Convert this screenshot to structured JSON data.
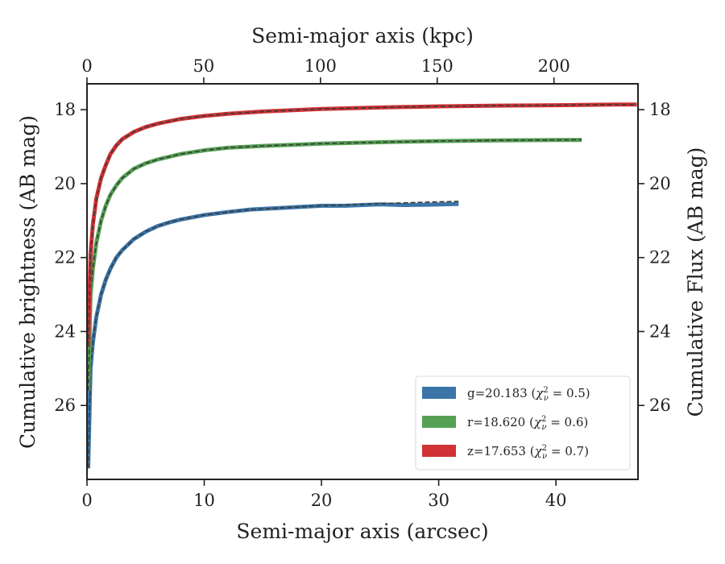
{
  "chart_data": {
    "type": "line",
    "xlabel": "Semi-major axis (arcsec)",
    "ylabel": "Cumulative brightness (AB mag)",
    "x2label": "Semi-major axis (kpc)",
    "y2label": "Cumulative Flux (AB mag)",
    "xlim": [
      0,
      47
    ],
    "ylim": [
      28,
      17.3
    ],
    "x2lim": [
      0,
      236
    ],
    "y_inverted": true,
    "xticks": [
      0,
      10,
      20,
      30,
      40
    ],
    "yticks": [
      18,
      20,
      22,
      24,
      26
    ],
    "x2ticks": [
      0,
      50,
      100,
      150,
      200
    ],
    "legend_position": "lower right",
    "grid": false,
    "series": [
      {
        "name": "g=20.183 (χ²ν = 0.5)",
        "legend_main": "g=20.183 (",
        "legend_sym": "χ",
        "legend_sup": "2",
        "legend_sub": "ν",
        "legend_tail": " = 0.5)",
        "color": "#3b75a8",
        "x": [
          0.1,
          0.3,
          0.5,
          0.8,
          1.2,
          1.6,
          2.0,
          2.5,
          3.0,
          4.0,
          5.0,
          6.0,
          7.0,
          8.0,
          10.0,
          12.0,
          14.0,
          17.0,
          20.0,
          22.0,
          25.0,
          27.0,
          29.0,
          31.7
        ],
        "y": [
          27.7,
          25.0,
          24.3,
          23.6,
          23.0,
          22.6,
          22.3,
          22.0,
          21.8,
          21.5,
          21.3,
          21.15,
          21.05,
          20.97,
          20.85,
          20.77,
          20.7,
          20.65,
          20.6,
          20.6,
          20.56,
          20.58,
          20.57,
          20.55
        ],
        "model_y": [
          27.7,
          25.0,
          24.3,
          23.6,
          23.0,
          22.6,
          22.3,
          22.0,
          21.8,
          21.5,
          21.3,
          21.15,
          21.05,
          20.97,
          20.85,
          20.77,
          20.7,
          20.65,
          20.6,
          20.58,
          20.54,
          20.52,
          20.5,
          20.48
        ]
      },
      {
        "name": "r=18.620 (χ²ν = 0.6)",
        "legend_main": "r=18.620 (",
        "legend_sym": "χ",
        "legend_sup": "2",
        "legend_sub": "ν",
        "legend_tail": " = 0.6)",
        "color": "#55a153",
        "x": [
          0.1,
          0.3,
          0.5,
          0.8,
          1.2,
          1.6,
          2.0,
          2.5,
          3.0,
          4.0,
          5.0,
          6.0,
          8.0,
          10.0,
          12.0,
          15.0,
          20.0,
          25.0,
          30.0,
          35.0,
          40.0,
          42.2
        ],
        "y": [
          25.6,
          23.0,
          22.3,
          21.6,
          21.0,
          20.6,
          20.3,
          20.05,
          19.85,
          19.6,
          19.45,
          19.35,
          19.2,
          19.1,
          19.03,
          18.98,
          18.92,
          18.88,
          18.85,
          18.83,
          18.82,
          18.82
        ],
        "model_y": [
          25.6,
          23.0,
          22.3,
          21.6,
          21.0,
          20.6,
          20.3,
          20.05,
          19.85,
          19.6,
          19.45,
          19.35,
          19.2,
          19.1,
          19.03,
          18.98,
          18.92,
          18.88,
          18.85,
          18.83,
          18.82,
          18.81
        ]
      },
      {
        "name": "z=17.653 (χ²ν = 0.7)",
        "legend_main": "z=17.653 (",
        "legend_sym": "χ",
        "legend_sup": "2",
        "legend_sub": "ν",
        "legend_tail": " = 0.7)",
        "color": "#d03235",
        "x": [
          0.1,
          0.3,
          0.5,
          0.8,
          1.2,
          1.6,
          2.0,
          2.5,
          3.0,
          4.0,
          5.0,
          6.0,
          8.0,
          10.0,
          12.0,
          15.0,
          20.0,
          25.0,
          30.0,
          35.0,
          40.0,
          45.0,
          46.9
        ],
        "y": [
          24.4,
          21.9,
          21.1,
          20.4,
          19.85,
          19.5,
          19.2,
          18.97,
          18.8,
          18.6,
          18.47,
          18.38,
          18.25,
          18.17,
          18.11,
          18.05,
          17.98,
          17.94,
          17.91,
          17.89,
          17.88,
          17.86,
          17.86
        ],
        "model_y": [
          24.4,
          21.9,
          21.1,
          20.4,
          19.85,
          19.5,
          19.2,
          18.97,
          18.8,
          18.6,
          18.47,
          18.38,
          18.25,
          18.17,
          18.11,
          18.05,
          17.98,
          17.94,
          17.91,
          17.89,
          17.88,
          17.86,
          17.86
        ]
      }
    ]
  }
}
